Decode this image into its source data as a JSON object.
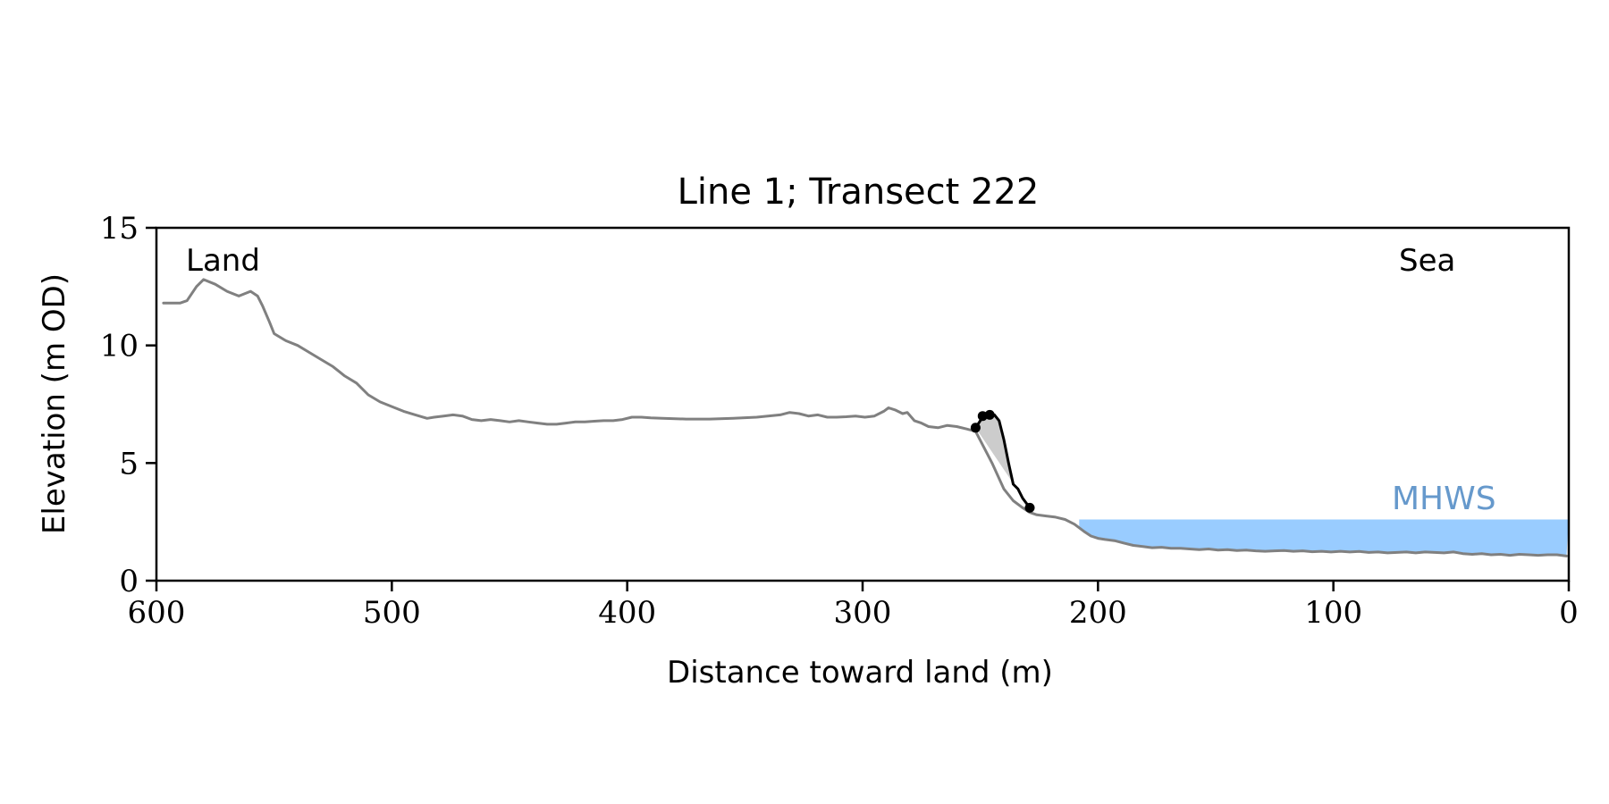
{
  "chart_data": {
    "type": "line",
    "title": "Line 1; Transect 222",
    "xlabel": "Distance toward land (m)",
    "ylabel": "Elevation (m OD)",
    "xlim": [
      600,
      0
    ],
    "ylim": [
      0,
      15
    ],
    "xticks": [
      600,
      500,
      400,
      300,
      200,
      100,
      0
    ],
    "yticks": [
      0,
      5,
      10,
      15
    ],
    "grid": false,
    "annotations": {
      "land": "Land",
      "sea": "Sea",
      "mhws": "MHWS"
    },
    "colors": {
      "profile": "#808080",
      "feature": "#000000",
      "fill": "#cccccc",
      "water": "#99ccff",
      "mhws_label": "#6699cc"
    },
    "mhws_level": 2.6,
    "mhws_x_range": [
      208,
      0
    ],
    "profile": {
      "x": [
        597,
        590,
        587,
        583,
        580,
        575,
        570,
        565,
        560,
        557,
        555,
        552,
        550,
        545,
        540,
        535,
        530,
        525,
        520,
        515,
        510,
        505,
        500,
        495,
        490,
        485,
        482,
        478,
        474,
        470,
        466,
        462,
        458,
        454,
        450,
        446,
        442,
        438,
        434,
        430,
        426,
        422,
        418,
        414,
        410,
        406,
        402,
        398,
        394,
        390,
        385,
        375,
        365,
        355,
        345,
        335,
        331,
        327,
        323,
        319,
        315,
        311,
        307,
        303,
        299,
        295,
        291,
        289,
        286,
        283,
        281,
        278,
        275,
        272,
        268,
        264,
        260,
        256,
        252,
        245,
        240,
        236,
        232,
        229,
        226,
        222,
        218,
        214,
        210,
        206,
        203,
        200,
        197,
        193,
        189,
        185,
        181,
        177,
        173,
        169,
        165,
        161,
        157,
        153,
        149,
        145,
        141,
        137,
        133,
        129,
        125,
        121,
        117,
        113,
        109,
        105,
        101,
        97,
        93,
        89,
        85,
        81,
        77,
        73,
        69,
        65,
        61,
        57,
        53,
        49,
        45,
        41,
        37,
        33,
        29,
        25,
        21,
        17,
        13,
        9,
        5,
        1
      ],
      "y": [
        11.8,
        11.8,
        11.9,
        12.5,
        12.8,
        12.6,
        12.3,
        12.1,
        12.3,
        12.1,
        11.7,
        11.0,
        10.5,
        10.2,
        10.0,
        9.7,
        9.4,
        9.1,
        8.7,
        8.4,
        7.9,
        7.6,
        7.4,
        7.2,
        7.05,
        6.9,
        6.95,
        7.0,
        7.05,
        7.0,
        6.85,
        6.8,
        6.85,
        6.8,
        6.75,
        6.8,
        6.75,
        6.7,
        6.65,
        6.65,
        6.7,
        6.75,
        6.75,
        6.78,
        6.8,
        6.8,
        6.85,
        6.95,
        6.95,
        6.92,
        6.9,
        6.87,
        6.87,
        6.9,
        6.95,
        7.05,
        7.15,
        7.1,
        7.0,
        7.05,
        6.95,
        6.95,
        6.97,
        7.0,
        6.95,
        7.0,
        7.2,
        7.35,
        7.25,
        7.1,
        7.15,
        6.8,
        6.7,
        6.55,
        6.5,
        6.6,
        6.55,
        6.45,
        6.35,
        5.0,
        3.9,
        3.4,
        3.1,
        2.9,
        2.8,
        2.75,
        2.7,
        2.6,
        2.4,
        2.1,
        1.9,
        1.8,
        1.75,
        1.7,
        1.6,
        1.5,
        1.45,
        1.4,
        1.42,
        1.38,
        1.38,
        1.35,
        1.32,
        1.35,
        1.3,
        1.32,
        1.28,
        1.3,
        1.27,
        1.25,
        1.27,
        1.28,
        1.25,
        1.27,
        1.23,
        1.25,
        1.22,
        1.25,
        1.22,
        1.24,
        1.2,
        1.22,
        1.18,
        1.2,
        1.22,
        1.18,
        1.22,
        1.2,
        1.18,
        1.22,
        1.15,
        1.12,
        1.15,
        1.1,
        1.12,
        1.08,
        1.12,
        1.1,
        1.08,
        1.1,
        1.1,
        1.05
      ]
    },
    "feature_line": {
      "x": [
        252,
        249,
        247,
        244,
        242,
        240,
        238,
        236,
        234,
        232,
        229
      ],
      "y": [
        6.5,
        6.95,
        7.0,
        7.05,
        6.8,
        6.0,
        5.0,
        4.1,
        3.9,
        3.5,
        3.1
      ]
    },
    "feature_markers": {
      "x": [
        252,
        249,
        246,
        229
      ],
      "y": [
        6.5,
        7.0,
        7.05,
        3.1
      ]
    }
  }
}
